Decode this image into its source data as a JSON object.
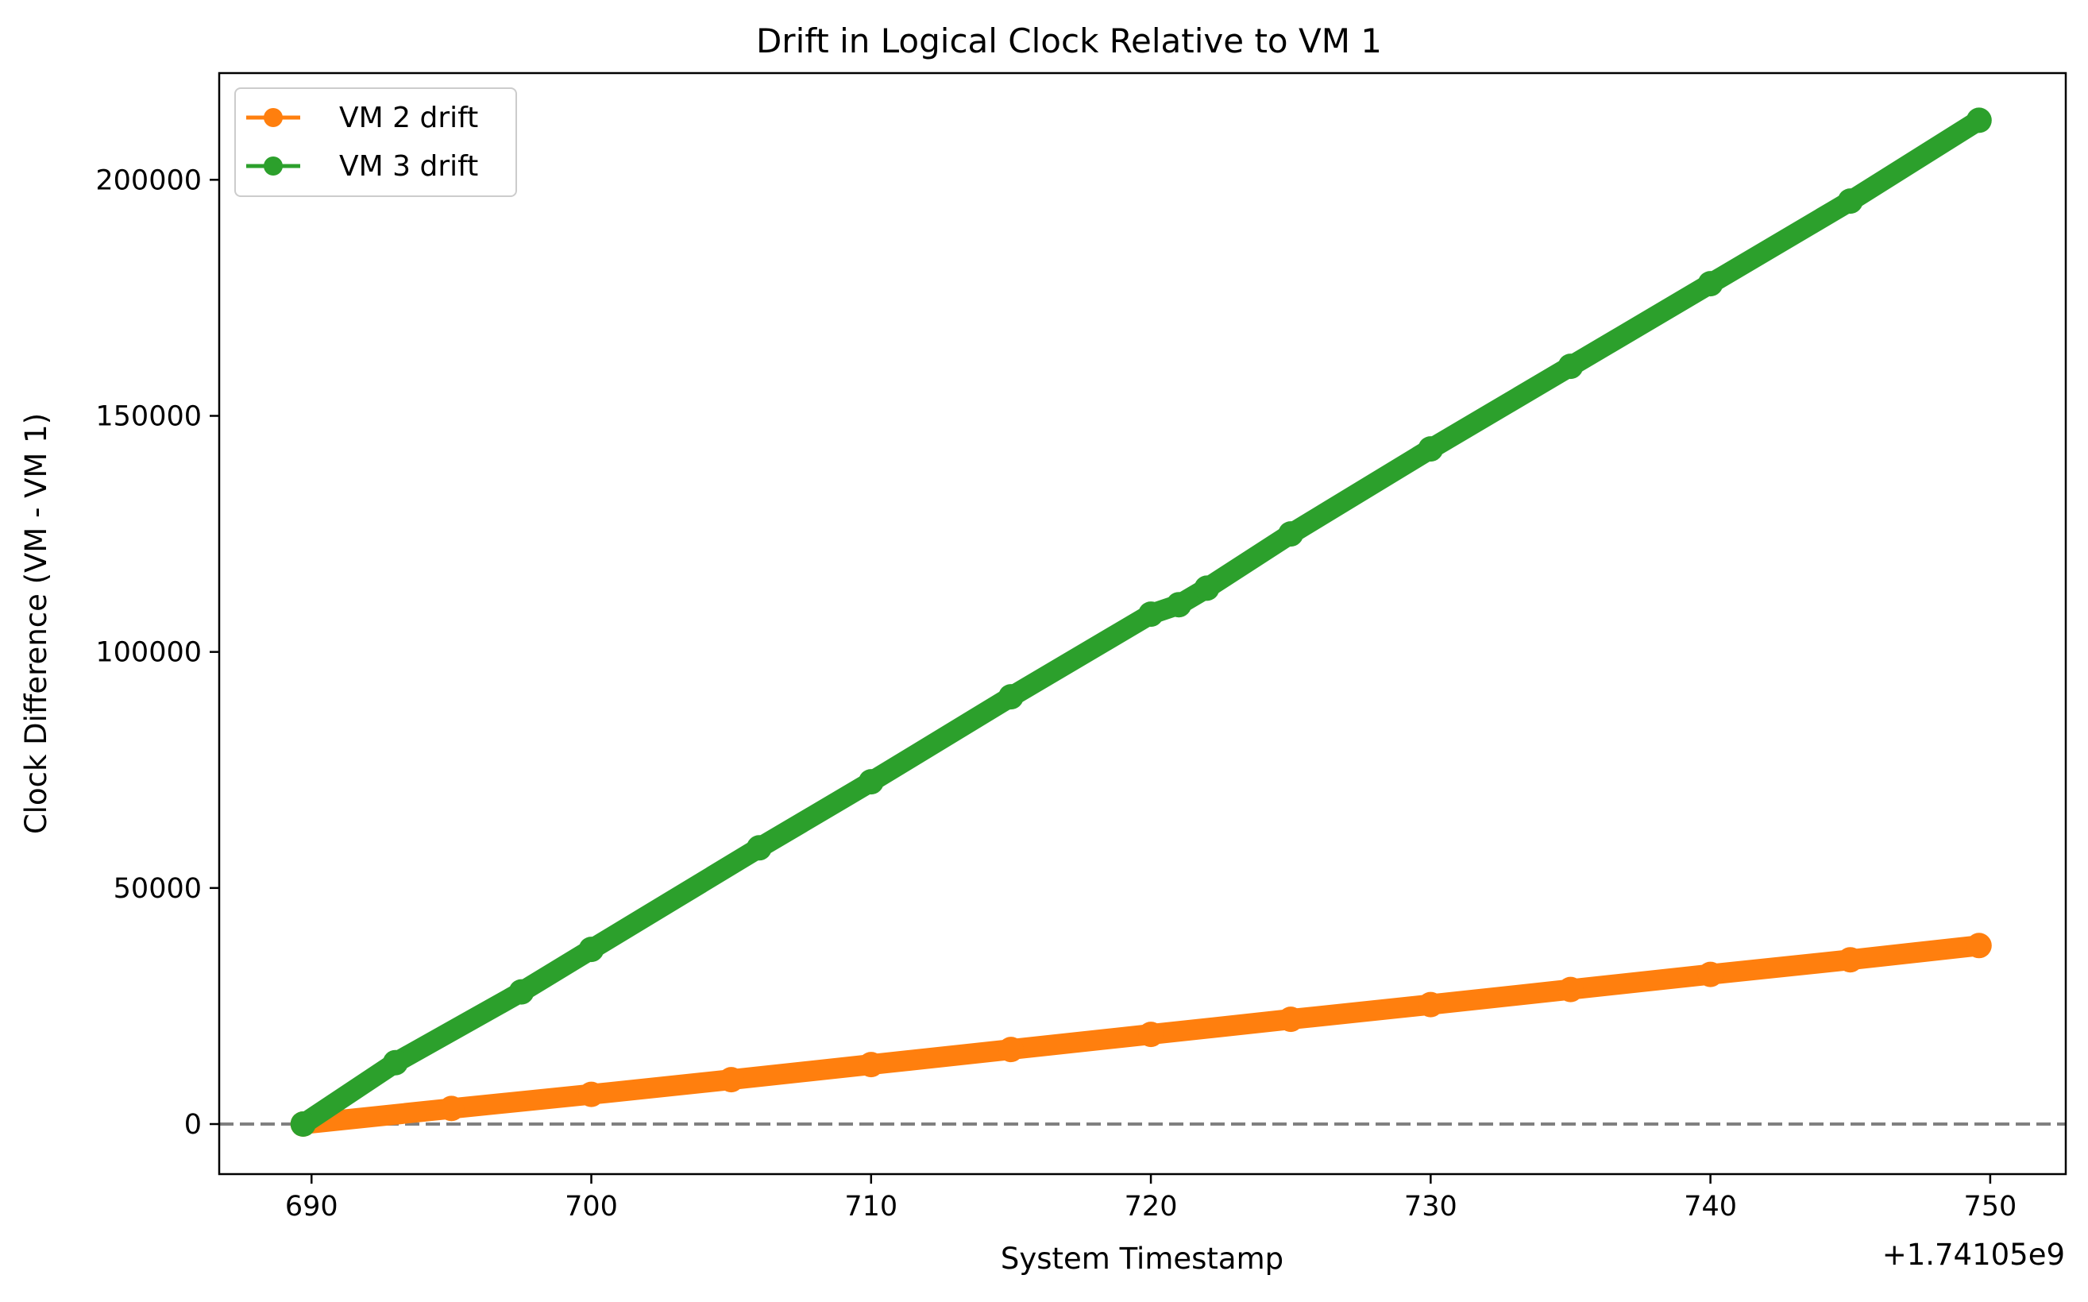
{
  "chart_data": {
    "type": "line",
    "title": "Drift in Logical Clock Relative to VM 1",
    "xlabel": "System Timestamp",
    "ylabel": "Clock Difference (VM - VM 1)",
    "x_offset_label": "+1.74105e9",
    "xlim": [
      686.7,
      752.7
    ],
    "ylim": [
      -10600,
      222600
    ],
    "xticks": [
      690,
      700,
      710,
      720,
      730,
      740,
      750
    ],
    "yticks": [
      0,
      50000,
      100000,
      150000,
      200000
    ],
    "grid": false,
    "legend_position": "upper left",
    "reference_line": {
      "y": 0,
      "style": "dashed",
      "color": "#808080"
    },
    "series": [
      {
        "name": "VM 2 drift",
        "color": "#ff7f0e",
        "x": [
          689.7,
          695,
          700,
          705,
          710,
          715,
          720,
          725,
          730,
          735,
          740,
          745,
          749.6
        ],
        "y": [
          0,
          3300,
          6300,
          9400,
          12600,
          15800,
          19000,
          22200,
          25300,
          28500,
          31700,
          34800,
          37800
        ]
      },
      {
        "name": "VM 3 drift",
        "color": "#2ca02c",
        "x": [
          689.7,
          693,
          697.5,
          700,
          706,
          710,
          715,
          720,
          721,
          722,
          725,
          730,
          735,
          740,
          745,
          749.6
        ],
        "y": [
          0,
          13000,
          28000,
          37000,
          58500,
          72500,
          90500,
          108000,
          110000,
          113500,
          125000,
          143000,
          160500,
          178000,
          195500,
          212600
        ]
      }
    ]
  }
}
